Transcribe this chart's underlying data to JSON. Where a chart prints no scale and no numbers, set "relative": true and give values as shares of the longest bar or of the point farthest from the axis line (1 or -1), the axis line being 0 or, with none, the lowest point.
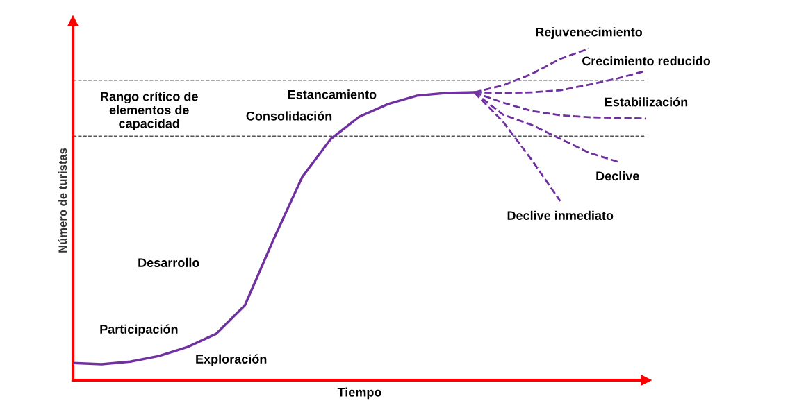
{
  "chart_data": {
    "type": "line",
    "relative": true,
    "xlabel": "Tiempo",
    "ylabel": "Número de turistas",
    "line_style": "solid",
    "categories": [
      null,
      null,
      null,
      null,
      null,
      null,
      null,
      null,
      null,
      null,
      null,
      null,
      null,
      null,
      null,
      null,
      null,
      null,
      null,
      null,
      null
    ],
    "series": [
      {
        "color": "#7030a0",
        "values": [
          0.052,
          0.048,
          0.056,
          0.073,
          0.1,
          0.14,
          0.226,
          0.425,
          0.613,
          0.728,
          0.795,
          0.833,
          0.858,
          0.866,
          0.868,
          null,
          null,
          null,
          null,
          null,
          null
        ]
      },
      {
        "name": "Rejuvenecimiento",
        "color": "#7030a0",
        "line_style": "dashed",
        "values": [
          null,
          null,
          null,
          null,
          null,
          null,
          null,
          null,
          null,
          null,
          null,
          null,
          null,
          null,
          0.868,
          0.889,
          0.923,
          0.969,
          1.0,
          null,
          null
        ]
      },
      {
        "name": "Crecimiento reducido",
        "color": "#7030a0",
        "line_style": "dashed",
        "values": [
          null,
          null,
          null,
          null,
          null,
          null,
          null,
          null,
          null,
          null,
          null,
          null,
          null,
          null,
          0.868,
          0.866,
          0.868,
          0.874,
          0.891,
          0.91,
          0.933
        ]
      },
      {
        "name": "Estabilización",
        "color": "#7030a0",
        "line_style": "dashed",
        "values": [
          null,
          null,
          null,
          null,
          null,
          null,
          null,
          null,
          null,
          null,
          null,
          null,
          null,
          null,
          0.868,
          0.837,
          0.812,
          0.799,
          0.793,
          0.791,
          0.789
        ]
      },
      {
        "name": "Declive",
        "color": "#7030a0",
        "line_style": "dashed",
        "values": [
          null,
          null,
          null,
          null,
          null,
          null,
          null,
          null,
          null,
          null,
          null,
          null,
          null,
          null,
          0.868,
          0.801,
          0.77,
          0.728,
          0.686,
          0.659,
          null
        ]
      },
      {
        "name": "Declive inmediato",
        "color": "#7030a0",
        "line_style": "dashed",
        "values": [
          null,
          null,
          null,
          null,
          null,
          null,
          null,
          null,
          null,
          null,
          null,
          null,
          null,
          null,
          0.868,
          0.78,
          0.665,
          0.54,
          null,
          null,
          null
        ]
      }
    ],
    "ref_lines": [
      {
        "axis": "y",
        "value": 0.904,
        "color": "#555555",
        "line_style": "dashed"
      },
      {
        "axis": "y",
        "value": 0.736,
        "color": "#555555",
        "line_style": "dashed"
      }
    ],
    "annotations": [
      "Rango crítico de\nelementos de\ncapacidad",
      "Estancamiento",
      "Consolidación",
      "Desarrollo",
      "Participación",
      "Exploración"
    ]
  }
}
